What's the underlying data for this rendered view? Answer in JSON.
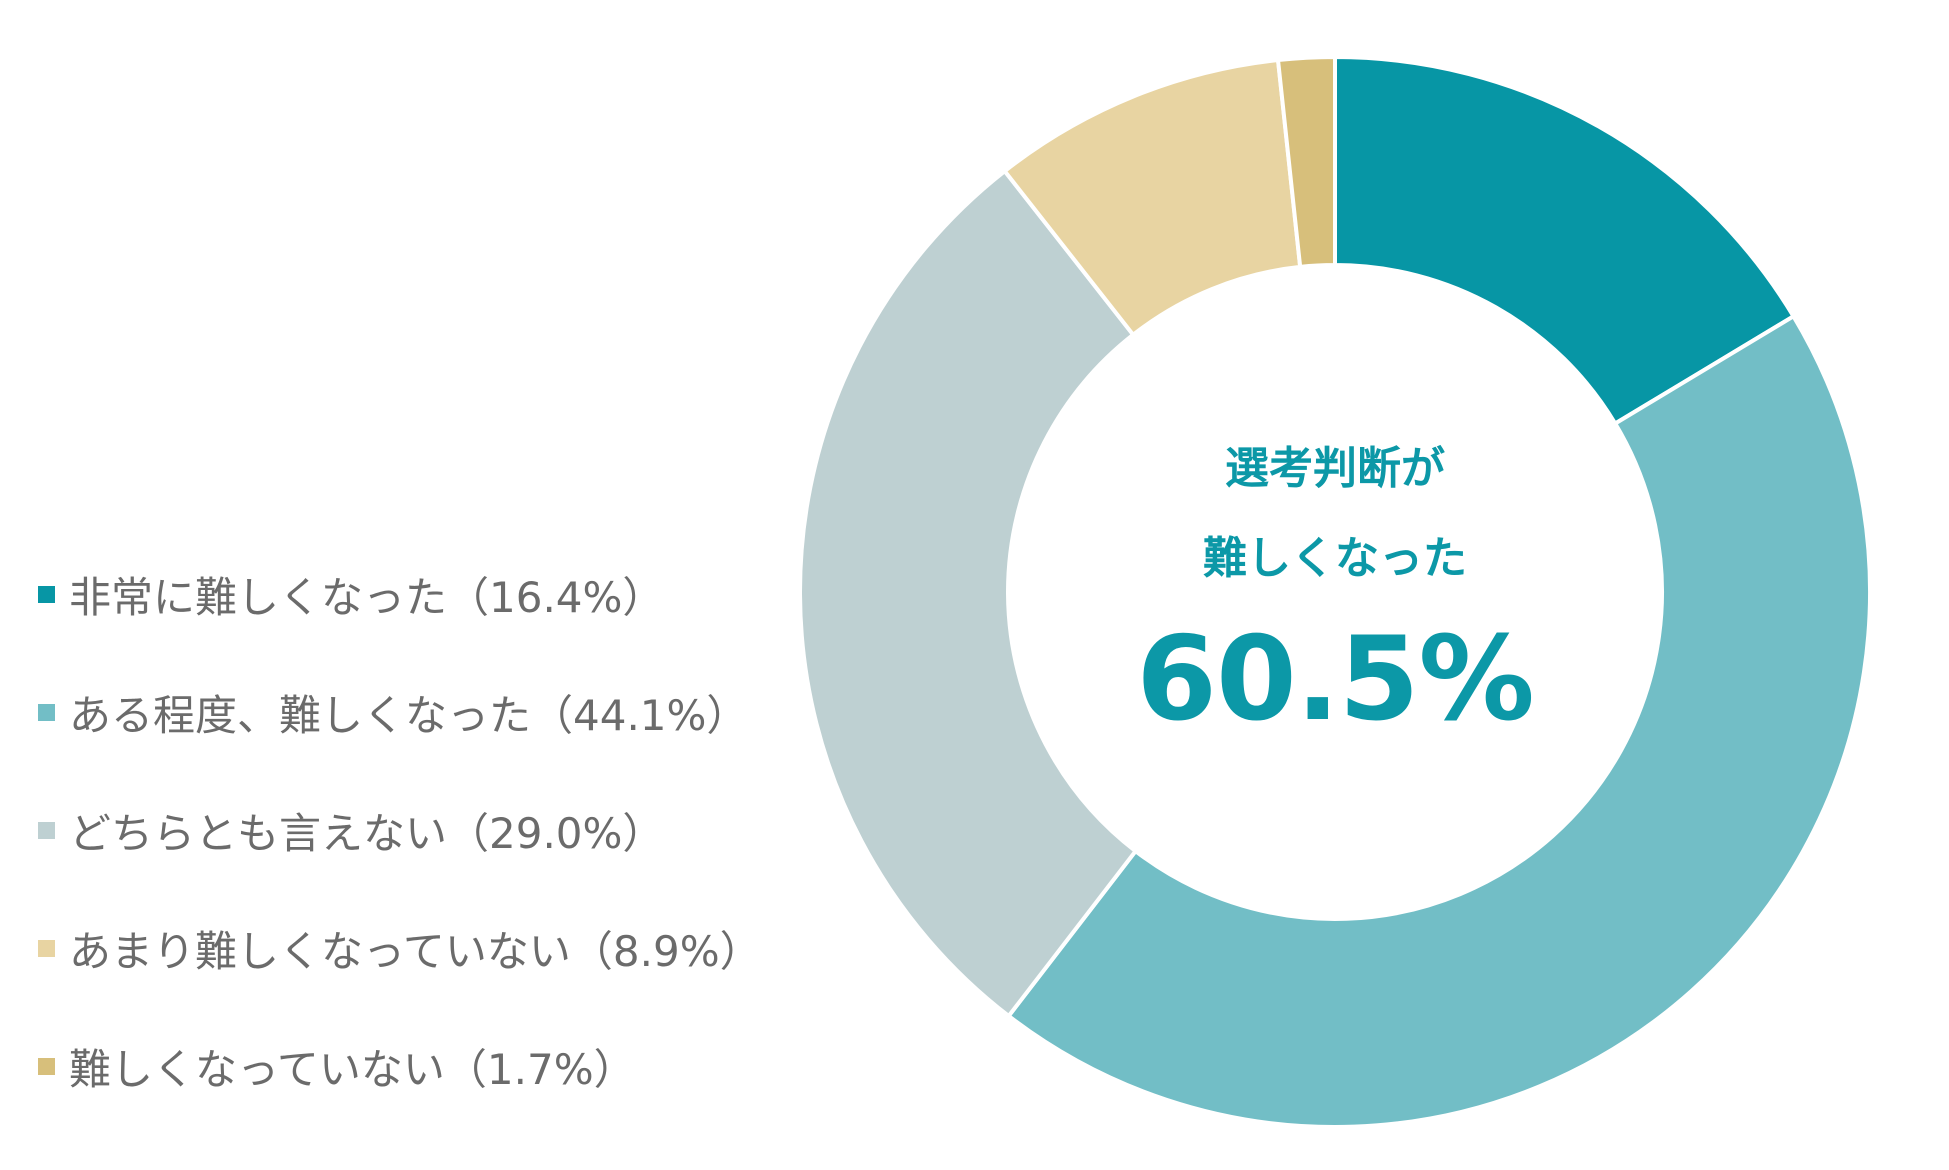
{
  "chart_data": {
    "type": "pie",
    "title": "",
    "center_text": [
      "選考判断が",
      "難しくなった"
    ],
    "center_value": "60.5%",
    "categories": [
      "非常に難しくなった（16.4%）",
      "ある程度、難しくなった（44.1%）",
      "どちらとも言えない（29.0%）",
      "あまり難しくなっていない（8.9%）",
      "難しくなっていない（1.7%）"
    ],
    "values": [
      16.4,
      44.1,
      29.0,
      8.9,
      1.7
    ],
    "colors": [
      "#0796a5",
      "#72bec6",
      "#bed0d2",
      "#e8d4a2",
      "#d7bf7b"
    ],
    "legend_placement": "left"
  }
}
